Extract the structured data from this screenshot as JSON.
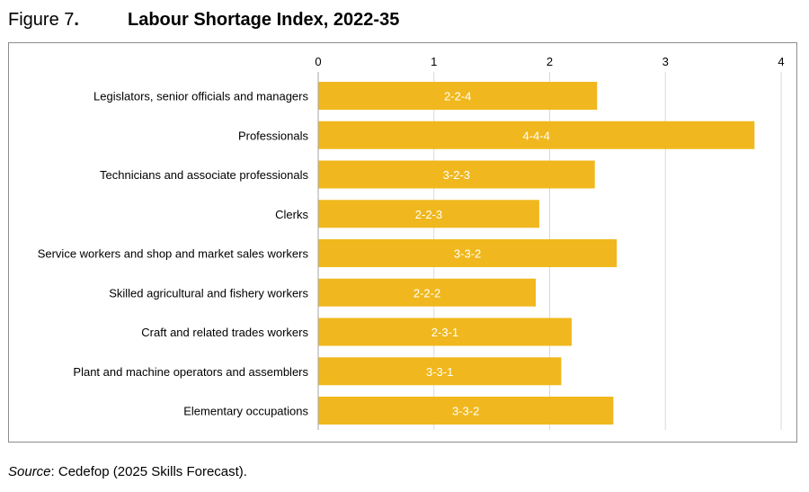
{
  "figure": {
    "number": "Figure 7",
    "punct": ".",
    "title": "Labour Shortage Index, 2022-35"
  },
  "source": {
    "label": "Source",
    "text": ": Cedefop (2025 Skills Forecast)."
  },
  "colors": {
    "bar": "#f0b81e",
    "grid": "#d9d9d9",
    "axis": "#a6a6a6",
    "bar_label": "#ffffff"
  },
  "chart_data": {
    "type": "bar",
    "orientation": "horizontal",
    "title": "Labour Shortage Index, 2022-35",
    "xlabel": "",
    "ylabel": "",
    "xlim": [
      0,
      4
    ],
    "ticks": [
      0,
      1,
      2,
      3,
      4
    ],
    "tick_labels": [
      "0",
      "1",
      "2",
      "3",
      "4"
    ],
    "grid": true,
    "axis_position": "top",
    "categories": [
      "Legislators, senior officials and managers",
      "Professionals",
      "Technicians and associate professionals",
      "Clerks",
      "Service workers and shop and market sales workers",
      "Skilled agricultural and fishery workers",
      "Craft and related trades workers",
      "Plant and machine operators and assemblers",
      "Elementary occupations"
    ],
    "values": [
      2.41,
      3.77,
      2.39,
      1.91,
      2.58,
      1.88,
      2.19,
      2.1,
      2.55
    ],
    "labels": [
      "2-2-4",
      "4-4-4",
      "3-2-3",
      "2-2-3",
      "3-3-2",
      "2-2-2",
      "2-3-1",
      "3-3-1",
      "3-3-2"
    ]
  }
}
